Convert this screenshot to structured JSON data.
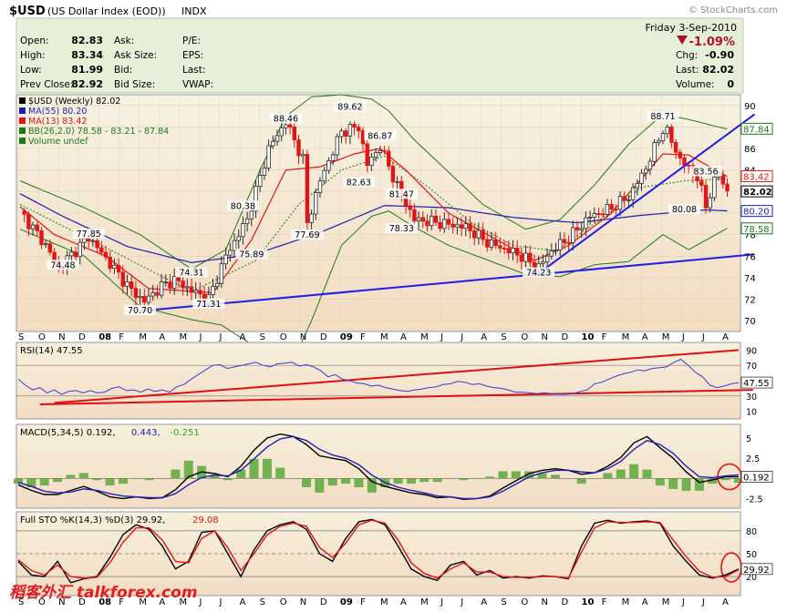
{
  "header": {
    "symbol": "$USD",
    "name": "(US Dollar Index (EOD))",
    "exchange": "INDX",
    "watermark": "© StockCharts.com",
    "date": "Friday   3-Sep-2010",
    "quotes": [
      {
        "label": "Open:",
        "value": "82.83"
      },
      {
        "label": "High:",
        "value": "83.34"
      },
      {
        "label": "Low:",
        "value": "81.99"
      },
      {
        "label": "Prev Close:",
        "value": "82.92"
      }
    ],
    "mid_labels": [
      "Ask:",
      "Ask Size:",
      "Bid:",
      "Bid Size:"
    ],
    "ratio_labels": [
      "P/E:",
      "EPS:",
      "Last:",
      "VWAP:"
    ],
    "pct_change": "-1.09%",
    "right_stats": [
      {
        "label": "Chg:",
        "value": "-0.90"
      },
      {
        "label": "Last:",
        "value": "82.02"
      },
      {
        "label": "Volume:",
        "value": "0"
      }
    ]
  },
  "colors": {
    "up_candle": "#2a2a2a",
    "down_candle": "#e21515",
    "ma55": "#1e1eb4",
    "ma13": "#e21515",
    "bollinger": "#1c7a1c",
    "trendline_main": "#1e1ee6",
    "trendline_rsi": "#e01010",
    "panel_header_bg": "#e6efd8",
    "bg_top": "#f7f2e2",
    "bg_bottom": "#f3ddc4"
  },
  "main_legend": [
    {
      "text": "$USD (Weekly) 82.02",
      "color": "#000000"
    },
    {
      "text": "MA(55) 80.20",
      "color": "#1e1eb4"
    },
    {
      "text": "MA(13) 83.42",
      "color": "#e21515"
    },
    {
      "text": "BB(26,2.0) 78.58 - 83.21 - 87.84",
      "color": "#1c7a1c"
    },
    {
      "text": "Volume undef",
      "color": "#1c7a1c"
    }
  ],
  "rsi_legend": "RSI(14) 47.55",
  "macd_legend": [
    {
      "text": "MACD(5,34,5) 0.192,",
      "color": "#000000"
    },
    {
      "text": "0.443,",
      "color": "#1e1eb4"
    },
    {
      "text": "-0.251",
      "color": "#22aa22"
    }
  ],
  "sto_legend": [
    {
      "text": "Full STO %K(14,3) %D(3) 29.92,",
      "color": "#000000"
    },
    {
      "text": "29.08",
      "color": "#e21515"
    }
  ],
  "watermark_bottom": "稻客外汇 talkforex.com",
  "chart_data": [
    {
      "type": "candlestick",
      "title": "$USD (Weekly) 82.02",
      "xlabel": "",
      "ylabel": "",
      "x_ticks": [
        "S",
        "O",
        "N",
        "D",
        "08",
        "F",
        "M",
        "A",
        "M",
        "J",
        "J",
        "A",
        "S",
        "O",
        "N",
        "D",
        "09",
        "F",
        "M",
        "A",
        "M",
        "J",
        "J",
        "A",
        "S",
        "O",
        "N",
        "D",
        "10",
        "F",
        "M",
        "A",
        "M",
        "J",
        "J",
        "A"
      ],
      "ylim": [
        69,
        91
      ],
      "y_ticks": [
        70,
        72,
        74,
        76,
        78,
        80,
        82,
        84,
        86,
        88,
        90
      ],
      "price_path": [
        [
          0,
          80.2
        ],
        [
          6,
          77.0
        ],
        [
          9,
          74.9
        ],
        [
          16,
          77.8
        ],
        [
          20,
          75.8
        ],
        [
          26,
          72.8
        ],
        [
          29,
          71.8
        ],
        [
          33,
          73.2
        ],
        [
          36,
          73.8
        ],
        [
          40,
          72.8
        ],
        [
          44,
          72.0
        ],
        [
          48,
          76.0
        ],
        [
          53,
          79.4
        ],
        [
          58,
          86.0
        ],
        [
          62,
          88.5
        ],
        [
          66,
          85.0
        ],
        [
          67,
          79.0
        ],
        [
          70,
          83.0
        ],
        [
          75,
          87.6
        ],
        [
          79,
          88.0
        ],
        [
          81,
          84.5
        ],
        [
          84,
          86.2
        ],
        [
          88,
          82.5
        ],
        [
          92,
          79.4
        ],
        [
          96,
          79.2
        ],
        [
          104,
          78.7
        ],
        [
          109,
          77.3
        ],
        [
          116,
          76.2
        ],
        [
          121,
          75.0
        ],
        [
          124,
          76.5
        ],
        [
          128,
          77.7
        ],
        [
          133,
          79.7
        ],
        [
          137,
          80.3
        ],
        [
          142,
          81.5
        ],
        [
          146,
          84.2
        ],
        [
          150,
          87.8
        ],
        [
          151,
          87.5
        ],
        [
          154,
          85.0
        ],
        [
          158,
          83.3
        ],
        [
          160,
          80.7
        ],
        [
          162,
          82.9
        ],
        [
          163,
          83.6
        ],
        [
          165,
          82.0
        ]
      ],
      "ma55": [
        [
          0,
          81.8
        ],
        [
          10,
          79.7
        ],
        [
          25,
          76.9
        ],
        [
          40,
          75.4
        ],
        [
          55,
          76.2
        ],
        [
          70,
          78.2
        ],
        [
          85,
          80.7
        ],
        [
          100,
          80.5
        ],
        [
          115,
          79.6
        ],
        [
          130,
          79.1
        ],
        [
          145,
          79.8
        ],
        [
          160,
          80.3
        ],
        [
          165,
          80.2
        ]
      ],
      "ma13": [
        [
          0,
          80.6
        ],
        [
          8,
          78.0
        ],
        [
          20,
          76.0
        ],
        [
          30,
          73.0
        ],
        [
          45,
          72.6
        ],
        [
          54,
          77.5
        ],
        [
          62,
          84.0
        ],
        [
          70,
          84.3
        ],
        [
          78,
          85.5
        ],
        [
          84,
          86.0
        ],
        [
          90,
          84.0
        ],
        [
          100,
          80.0
        ],
        [
          110,
          77.8
        ],
        [
          120,
          75.6
        ],
        [
          128,
          77.0
        ],
        [
          138,
          80.0
        ],
        [
          150,
          85.5
        ],
        [
          156,
          85.4
        ],
        [
          165,
          83.4
        ]
      ],
      "bb_upper": [
        [
          0,
          83.0
        ],
        [
          15,
          80.5
        ],
        [
          28,
          78.0
        ],
        [
          40,
          74.8
        ],
        [
          48,
          76.6
        ],
        [
          56,
          84.0
        ],
        [
          62,
          89.0
        ],
        [
          68,
          90.8
        ],
        [
          75,
          91.0
        ],
        [
          82,
          90.6
        ],
        [
          86,
          89.5
        ],
        [
          92,
          86.8
        ],
        [
          100,
          83.8
        ],
        [
          108,
          80.8
        ],
        [
          118,
          78.5
        ],
        [
          126,
          79.4
        ],
        [
          134,
          82.6
        ],
        [
          142,
          86.4
        ],
        [
          150,
          89.2
        ],
        [
          156,
          88.7
        ],
        [
          165,
          87.8
        ]
      ],
      "bb_lower": [
        [
          0,
          78.5
        ],
        [
          15,
          76.0
        ],
        [
          28,
          71.3
        ],
        [
          40,
          70.1
        ],
        [
          47,
          69.6
        ],
        [
          54,
          67.8
        ],
        [
          62,
          64.8
        ],
        [
          68,
          70.0
        ],
        [
          75,
          77.0
        ],
        [
          82,
          79.7
        ],
        [
          86,
          80.2
        ],
        [
          92,
          78.7
        ],
        [
          100,
          77.0
        ],
        [
          108,
          75.8
        ],
        [
          118,
          74.3
        ],
        [
          126,
          74.1
        ],
        [
          134,
          75.2
        ],
        [
          142,
          75.5
        ],
        [
          150,
          78.0
        ],
        [
          156,
          76.6
        ],
        [
          165,
          78.6
        ]
      ],
      "bb_middle": [
        [
          0,
          80.8
        ],
        [
          20,
          76.8
        ],
        [
          40,
          72.7
        ],
        [
          55,
          75.6
        ],
        [
          65,
          80.8
        ],
        [
          75,
          84.0
        ],
        [
          85,
          85.3
        ],
        [
          95,
          82.5
        ],
        [
          105,
          79.2
        ],
        [
          115,
          77.0
        ],
        [
          125,
          76.5
        ],
        [
          135,
          79.3
        ],
        [
          145,
          82.4
        ],
        [
          155,
          83.0
        ],
        [
          165,
          83.2
        ]
      ],
      "trendlines": [
        [
          [
            28,
            70.9
          ],
          [
            165,
            76.0
          ]
        ],
        [
          [
            121,
            74.4
          ],
          [
            165,
            88.0
          ]
        ]
      ],
      "annotations": [
        {
          "x": 16,
          "y": 77.8,
          "label": "77.85"
        },
        {
          "x": 10,
          "y": 74.9,
          "label": "74.48"
        },
        {
          "x": 40,
          "y": 74.2,
          "label": "74.31"
        },
        {
          "x": 28,
          "y": 70.7,
          "label": "70.70"
        },
        {
          "x": 44,
          "y": 71.3,
          "label": "71.31"
        },
        {
          "x": 54,
          "y": 75.9,
          "label": "75.89"
        },
        {
          "x": 52,
          "y": 80.4,
          "label": "80.38"
        },
        {
          "x": 62,
          "y": 88.5,
          "label": "88.46"
        },
        {
          "x": 67,
          "y": 77.7,
          "label": "77.69"
        },
        {
          "x": 77,
          "y": 89.6,
          "label": "89.62"
        },
        {
          "x": 79,
          "y": 82.6,
          "label": "82.63"
        },
        {
          "x": 84,
          "y": 86.9,
          "label": "86.87"
        },
        {
          "x": 89,
          "y": 81.5,
          "label": "81.47"
        },
        {
          "x": 89,
          "y": 78.3,
          "label": "78.33"
        },
        {
          "x": 121,
          "y": 74.2,
          "label": "74.23"
        },
        {
          "x": 150,
          "y": 88.7,
          "label": "88.71"
        },
        {
          "x": 160,
          "y": 83.6,
          "label": "83.56"
        },
        {
          "x": 155,
          "y": 80.1,
          "label": "80.08"
        }
      ],
      "right_labels": [
        {
          "value": 87.84,
          "label": "87.84",
          "color": "#1c7a1c"
        },
        {
          "value": 83.42,
          "label": "83.42",
          "color": "#e21515"
        },
        {
          "value": 82.02,
          "label": "82.02",
          "color": "#000000"
        },
        {
          "value": 80.2,
          "label": "80.20",
          "color": "#1e1eb4"
        },
        {
          "value": 78.58,
          "label": "78.58",
          "color": "#1c7a1c"
        }
      ]
    },
    {
      "type": "line",
      "title": "RSI(14) 47.55",
      "ylim": [
        0,
        100
      ],
      "y_ticks": [
        10,
        30,
        50,
        70,
        90
      ],
      "reference_lines": [
        30,
        70
      ],
      "series": [
        {
          "values": [
            52,
            44,
            38,
            41,
            34,
            38,
            32,
            36,
            37,
            34,
            37,
            34,
            35,
            40,
            42,
            37,
            38,
            35,
            39,
            36,
            38,
            35,
            42,
            45,
            52,
            58,
            64,
            70,
            71,
            66,
            68,
            70,
            72,
            74,
            70,
            68,
            72,
            73,
            74,
            69,
            71,
            68,
            63,
            55,
            58,
            52,
            50,
            47,
            46,
            43,
            44,
            41,
            39,
            37,
            36,
            38,
            39,
            41,
            42,
            45,
            46,
            49,
            48,
            45,
            46,
            43,
            41,
            40,
            38,
            35,
            35,
            34,
            33,
            34,
            33,
            32,
            32,
            33,
            36,
            38,
            46,
            48,
            52,
            56,
            59,
            61,
            64,
            63,
            66,
            67,
            68,
            74,
            78,
            70,
            61,
            55,
            44,
            41,
            43,
            46,
            47.55
          ]
        }
      ],
      "trendlines": [
        [
          [
            0.05,
            21
          ],
          [
            1.0,
            90
          ]
        ],
        [
          [
            0.03,
            19
          ],
          [
            1.02,
            38
          ]
        ]
      ],
      "right_labels": [
        {
          "value": 47.55,
          "label": "47.55"
        }
      ]
    },
    {
      "type": "line",
      "title": "MACD(5,34,5)",
      "ylim": [
        -3.7,
        6.7
      ],
      "y_ticks": [
        -2.5,
        0.0,
        2.5,
        5.0
      ],
      "series": [
        {
          "name": "MACD",
          "values": [
            -0.8,
            -1.5,
            -2.0,
            -2.0,
            -1.5,
            -1.0,
            -1.6,
            -2.3,
            -2.5,
            -2.3,
            -2.5,
            -2.4,
            -1.4,
            0.2,
            0.8,
            0.6,
            0.2,
            1.5,
            3.5,
            5.0,
            5.5,
            5.2,
            4.2,
            2.8,
            2.5,
            2.2,
            1.2,
            -0.4,
            -1.0,
            -1.4,
            -1.8,
            -2.0,
            -2.4,
            -2.3,
            -2.6,
            -2.5,
            -2.2,
            -1.2,
            -0.3,
            0.6,
            1.0,
            1.2,
            1.0,
            0.5,
            0.7,
            1.5,
            2.6,
            4.4,
            5.2,
            3.8,
            2.5,
            0.8,
            -0.5,
            -0.2,
            0.2,
            0.192
          ]
        },
        {
          "name": "Signal",
          "values": [
            -0.5,
            -1.0,
            -1.6,
            -1.8,
            -1.7,
            -1.3,
            -1.5,
            -1.9,
            -2.2,
            -2.3,
            -2.4,
            -2.4,
            -1.9,
            -0.8,
            0.1,
            0.4,
            0.3,
            1.0,
            2.4,
            3.9,
            4.9,
            5.2,
            4.7,
            3.6,
            2.9,
            2.5,
            1.7,
            0.4,
            -0.5,
            -1.1,
            -1.5,
            -1.8,
            -2.2,
            -2.3,
            -2.5,
            -2.5,
            -2.3,
            -1.6,
            -0.7,
            0.2,
            0.7,
            1.0,
            1.0,
            0.8,
            0.7,
            1.2,
            2.1,
            3.6,
            4.7,
            4.2,
            3.1,
            1.5,
            0.2,
            0.1,
            0.3,
            0.443
          ]
        }
      ],
      "right_labels": [
        {
          "value": 0.192,
          "label": "0.192"
        }
      ]
    },
    {
      "type": "line",
      "title": "Full STO %K(14,3) %D(3)",
      "ylim": [
        -5,
        105
      ],
      "y_ticks": [
        20,
        50,
        80
      ],
      "reference_lines": [
        20,
        50,
        80
      ],
      "series": [
        {
          "name": "%K",
          "values": [
            40,
            22,
            20,
            40,
            12,
            17,
            20,
            45,
            75,
            88,
            82,
            60,
            30,
            40,
            78,
            80,
            50,
            20,
            55,
            80,
            88,
            92,
            82,
            50,
            40,
            70,
            92,
            95,
            88,
            60,
            30,
            20,
            15,
            35,
            40,
            22,
            28,
            18,
            20,
            18,
            21,
            20,
            17,
            60,
            90,
            94,
            90,
            92,
            93,
            90,
            60,
            40,
            22,
            18,
            22,
            29.92
          ]
        },
        {
          "name": "%D",
          "values": [
            42,
            28,
            22,
            35,
            20,
            18,
            19,
            38,
            65,
            84,
            84,
            68,
            40,
            38,
            70,
            80,
            58,
            28,
            50,
            75,
            86,
            90,
            86,
            58,
            45,
            64,
            88,
            94,
            90,
            68,
            38,
            24,
            18,
            30,
            38,
            26,
            26,
            20,
            19,
            19,
            20,
            20,
            18,
            52,
            84,
            92,
            91,
            91,
            92,
            91,
            68,
            46,
            27,
            19,
            20,
            29.08
          ]
        }
      ],
      "right_labels": [
        {
          "value": 29.92,
          "label": "29.92"
        }
      ]
    }
  ]
}
